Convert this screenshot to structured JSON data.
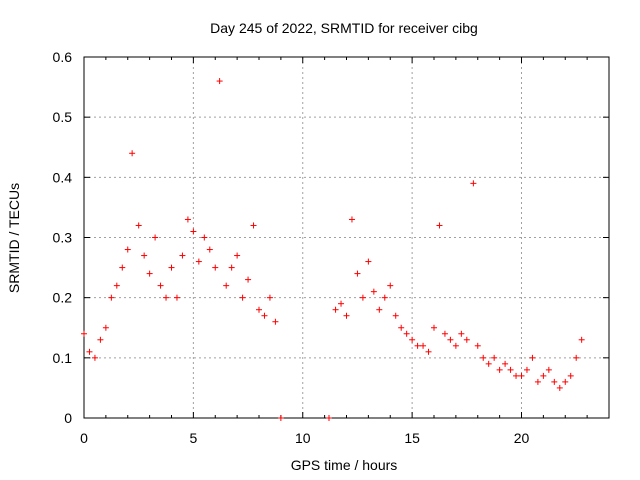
{
  "chart_data": {
    "type": "scatter",
    "title": "Day 245 of 2022, SRMTID for receiver cibg",
    "xlabel": "GPS time / hours",
    "ylabel": "SRMTID / TECUs",
    "xlim": [
      0,
      24
    ],
    "ylim": [
      0,
      0.6
    ],
    "grid": true,
    "marker": "+",
    "x_ticks": [
      0,
      5,
      10,
      15,
      20
    ],
    "y_ticks": [
      0,
      0.1,
      0.2,
      0.3,
      0.4,
      0.5,
      0.6
    ],
    "x_tick_labels": [
      "0",
      "5",
      "10",
      "15",
      "20"
    ],
    "y_tick_labels": [
      "0",
      "0.1",
      "0.2",
      "0.3",
      "0.4",
      "0.5",
      "0.6"
    ],
    "colors": {
      "points": "#ff0000"
    },
    "series": [
      {
        "name": "SRMTID",
        "x": [
          0.0,
          0.25,
          0.5,
          0.75,
          1.0,
          1.25,
          1.5,
          1.75,
          2.0,
          2.2,
          2.5,
          2.75,
          3.0,
          3.25,
          3.5,
          3.75,
          4.0,
          4.25,
          4.5,
          4.75,
          5.0,
          5.25,
          5.5,
          5.75,
          6.0,
          6.2,
          6.5,
          6.75,
          7.0,
          7.25,
          7.5,
          7.75,
          8.0,
          8.25,
          8.5,
          8.75,
          9.0,
          11.2,
          11.5,
          11.75,
          12.0,
          12.25,
          12.5,
          12.75,
          13.0,
          13.25,
          13.5,
          13.75,
          14.0,
          14.25,
          14.5,
          14.75,
          15.0,
          15.25,
          15.5,
          15.75,
          16.0,
          16.25,
          16.5,
          16.75,
          17.0,
          17.25,
          17.5,
          17.8,
          18.0,
          18.25,
          18.5,
          18.75,
          19.0,
          19.25,
          19.5,
          19.75,
          20.0,
          20.25,
          20.5,
          20.75,
          21.0,
          21.25,
          21.5,
          21.75,
          22.0,
          22.25,
          22.5,
          22.75
        ],
        "y": [
          0.14,
          0.11,
          0.1,
          0.13,
          0.15,
          0.2,
          0.22,
          0.25,
          0.28,
          0.44,
          0.32,
          0.27,
          0.24,
          0.3,
          0.22,
          0.2,
          0.25,
          0.2,
          0.27,
          0.33,
          0.31,
          0.26,
          0.3,
          0.28,
          0.25,
          0.56,
          0.22,
          0.25,
          0.27,
          0.2,
          0.23,
          0.32,
          0.18,
          0.17,
          0.2,
          0.16,
          0.0,
          0.0,
          0.18,
          0.19,
          0.17,
          0.33,
          0.24,
          0.2,
          0.26,
          0.21,
          0.18,
          0.2,
          0.22,
          0.17,
          0.15,
          0.14,
          0.13,
          0.12,
          0.12,
          0.11,
          0.15,
          0.32,
          0.14,
          0.13,
          0.12,
          0.14,
          0.13,
          0.39,
          0.12,
          0.1,
          0.09,
          0.1,
          0.08,
          0.09,
          0.08,
          0.07,
          0.07,
          0.08,
          0.1,
          0.06,
          0.07,
          0.08,
          0.06,
          0.05,
          0.06,
          0.07,
          0.1,
          0.13
        ]
      }
    ]
  }
}
